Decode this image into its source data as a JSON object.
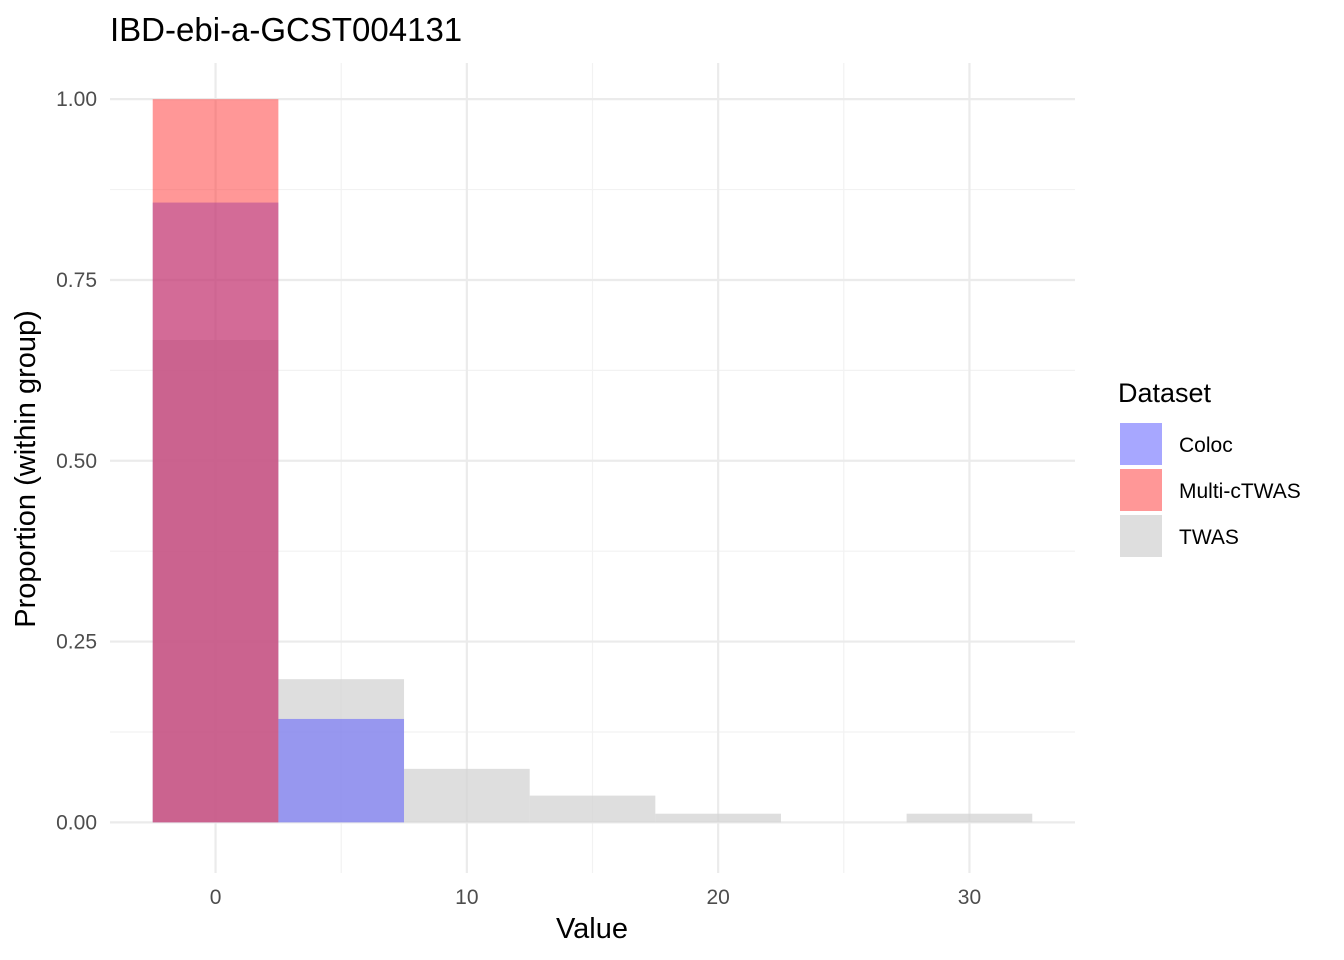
{
  "chart_data": {
    "type": "bar",
    "title": "IBD-ebi-a-GCST004131",
    "xlabel": "Value",
    "ylabel": "Proportion (within group)",
    "xlim": [
      -4.2,
      34.2
    ],
    "ylim": [
      -0.07,
      1.05
    ],
    "x_ticks": [
      0,
      10,
      20,
      30
    ],
    "y_ticks": [
      0.0,
      0.25,
      0.5,
      0.75,
      1.0
    ],
    "y_tick_labels": [
      "0.00",
      "0.25",
      "0.50",
      "0.75",
      "1.00"
    ],
    "bin_width": 5,
    "grid": true,
    "legend_position": "right",
    "legend_title": "Dataset",
    "series": [
      {
        "name": "TWAS",
        "color": "#d3d3d3",
        "opacity": 0.75,
        "bins": [
          {
            "x": 0,
            "y": 0.667
          },
          {
            "x": 5,
            "y": 0.198
          },
          {
            "x": 10,
            "y": 0.074
          },
          {
            "x": 15,
            "y": 0.037
          },
          {
            "x": 20,
            "y": 0.012
          },
          {
            "x": 30,
            "y": 0.012
          }
        ]
      },
      {
        "name": "Coloc",
        "color": "#5050ff",
        "opacity": 0.5,
        "bins": [
          {
            "x": 0,
            "y": 0.857
          },
          {
            "x": 5,
            "y": 0.143
          }
        ]
      },
      {
        "name": "Multi-cTWAS",
        "color": "#ff3030",
        "opacity": 0.5,
        "bins": [
          {
            "x": 0,
            "y": 1.0
          }
        ]
      }
    ],
    "legend_order": [
      "Coloc",
      "Multi-cTWAS",
      "TWAS"
    ]
  }
}
